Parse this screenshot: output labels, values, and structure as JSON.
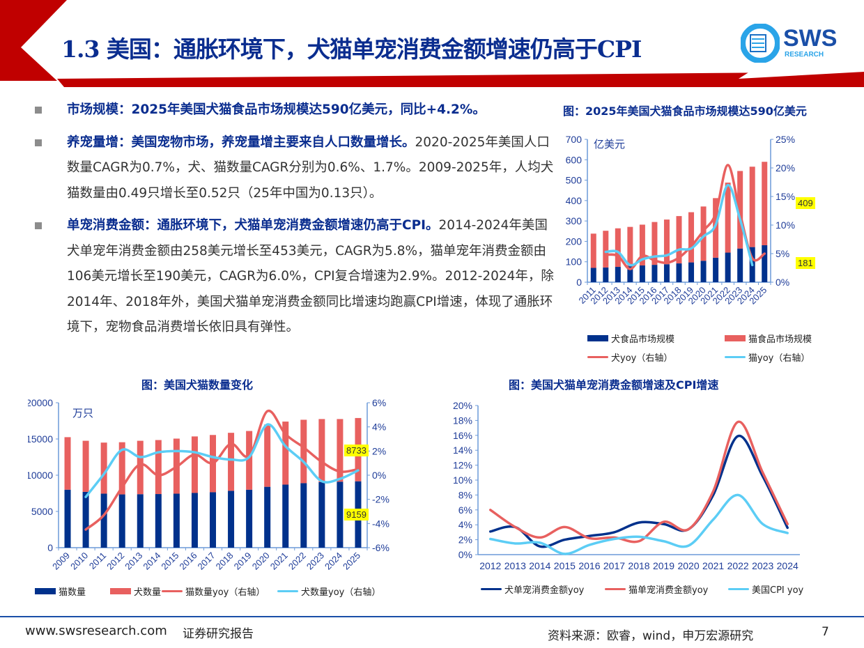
{
  "header": {
    "title": "1.3 美国：通胀环境下，犬猫单宠消费金额增速仍高于CPI",
    "logo_main": "SWS",
    "logo_sub": "RESEARCH"
  },
  "bullets": [
    {
      "highlight": "市场规模：2025年美国犬猫食品市场规模达590亿美元，同比+4.2%。",
      "text": ""
    },
    {
      "highlight": "养宠量增：美国宠物市场，养宠量增主要来自人口数量增长。",
      "text": "2020-2025年美国人口数量CAGR为0.7%，犬、猫数量CAGR分别为0.6%、1.7%。2009-2025年，人均犬猫数量由0.49只增长至0.52只（25年中国为0.13只）。"
    },
    {
      "highlight": "单宠消费金额：通胀环境下，犬猫单宠消费金额增速仍高于CPI。",
      "text": "2014-2024年美国犬单宠年消费金额由258美元增长至453美元，CAGR为5.8%，猫单宠年消费金额由106美元增长至190美元，CAGR为6.0%，CPI复合增速为2.9%。2012-2024年，除2014年、2018年外，美国犬猫单宠消费金额同比增速均跑赢CPI增速，体现了通胀环境下，宠物食品消费增长依旧具有弹性。"
    }
  ],
  "colors": {
    "navy": "#00318c",
    "red": "#e8605f",
    "light_blue": "#5ccdf5",
    "title_blue": "#0a2d8f",
    "brand_red": "#c00000"
  },
  "chart_data": [
    {
      "type": "bar+line",
      "title": "图：2025年美国犬猫食品市场规模达590亿美元",
      "unit": "亿美元",
      "categories": [
        "2011",
        "2012",
        "2013",
        "2014",
        "2015",
        "2016",
        "2017",
        "2018",
        "2019",
        "2020",
        "2021",
        "2022",
        "2023",
        "2024",
        "2025"
      ],
      "ylim": [
        0,
        700
      ],
      "yticks": [
        "0",
        "100",
        "200",
        "300",
        "400",
        "500",
        "600",
        "700"
      ],
      "y2lim": [
        0,
        25
      ],
      "y2ticks": [
        "0%",
        "5%",
        "10%",
        "15%",
        "20%",
        "25%"
      ],
      "series": [
        {
          "name": "犬食品市场规模",
          "kind": "bar",
          "values": [
            70,
            72,
            75,
            78,
            82,
            85,
            88,
            92,
            97,
            105,
            120,
            145,
            165,
            172,
            181
          ]
        },
        {
          "name": "猫食品市场规模",
          "kind": "bar",
          "values": [
            168,
            180,
            189,
            193,
            200,
            210,
            219,
            232,
            246,
            266,
            292,
            343,
            380,
            394,
            409
          ]
        },
        {
          "name": "犬yoy（右轴）",
          "kind": "line",
          "values": [
            null,
            4.8,
            4.6,
            2.3,
            4.6,
            3.8,
            3.4,
            4.3,
            6.3,
            9.0,
            12.0,
            20.5,
            12.0,
            4.2,
            5.0
          ]
        },
        {
          "name": "猫yoy（右轴）",
          "kind": "line",
          "values": [
            null,
            5.3,
            5.3,
            3.0,
            4.0,
            4.5,
            4.7,
            5.7,
            5.9,
            8.0,
            10.0,
            17.0,
            11.0,
            3.0,
            null
          ]
        }
      ],
      "labels": {
        "cat_2025": "409",
        "dog_2025": "181"
      },
      "grid": false,
      "legend": "bottom"
    },
    {
      "type": "bar+line",
      "title": "图：美国犬猫数量变化",
      "unit": "万只",
      "categories": [
        "2009",
        "2010",
        "2011",
        "2012",
        "2013",
        "2014",
        "2015",
        "2016",
        "2017",
        "2018",
        "2019",
        "2020",
        "2021",
        "2022",
        "2023",
        "2024",
        "2025"
      ],
      "ylim": [
        0,
        20000
      ],
      "yticks": [
        "0",
        "5000",
        "10000",
        "15000",
        "20000"
      ],
      "y2lim": [
        -6,
        6
      ],
      "y2ticks": [
        "-6%",
        "-4%",
        "-2%",
        "0%",
        "2%",
        "4%",
        "6%"
      ],
      "series": [
        {
          "name": "猫数量",
          "kind": "bar",
          "values": [
            8000,
            7700,
            7450,
            7350,
            7380,
            7400,
            7450,
            7550,
            7650,
            7850,
            8000,
            8400,
            8700,
            8900,
            9050,
            9100,
            9159
          ]
        },
        {
          "name": "犬数量",
          "kind": "bar",
          "values": [
            7250,
            7050,
            7050,
            7200,
            7370,
            7450,
            7600,
            7800,
            7900,
            8000,
            8100,
            8600,
            8700,
            8750,
            8700,
            8650,
            8733
          ]
        },
        {
          "name": "猫数量yoy（右轴）",
          "kind": "line",
          "values": [
            null,
            -4.5,
            -3.3,
            -1.0,
            0.9,
            0.0,
            0.7,
            1.7,
            1.0,
            2.6,
            1.6,
            5.3,
            3.4,
            2.3,
            1.1,
            0.3,
            0.5
          ]
        },
        {
          "name": "犬数量yoy（右轴）",
          "kind": "line",
          "values": [
            null,
            -1.8,
            0.1,
            2.1,
            1.5,
            1.9,
            2.0,
            1.9,
            1.5,
            1.3,
            1.5,
            4.2,
            2.4,
            1.1,
            -0.5,
            -0.3,
            0.4
          ]
        }
      ],
      "labels": {
        "dog_2025": "8733",
        "cat_2025": "9159"
      },
      "grid": false,
      "legend": "bottom"
    },
    {
      "type": "line",
      "title": "图：美国犬猫单宠消费金额增速及CPI增速",
      "categories": [
        "2012",
        "2013",
        "2014",
        "2015",
        "2016",
        "2017",
        "2018",
        "2019",
        "2020",
        "2021",
        "2022",
        "2023",
        "2024"
      ],
      "ylim": [
        0,
        20
      ],
      "yticks": [
        "0%",
        "2%",
        "4%",
        "6%",
        "8%",
        "10%",
        "12%",
        "14%",
        "16%",
        "18%",
        "20%"
      ],
      "series": [
        {
          "name": "犬单宠消费金额yoy",
          "values": [
            3.1,
            3.7,
            1.1,
            2.0,
            2.5,
            3.0,
            4.3,
            4.1,
            3.4,
            8.0,
            15.9,
            10.5,
            3.6
          ]
        },
        {
          "name": "猫单宠消费金额yoy",
          "values": [
            6.0,
            3.7,
            2.3,
            3.7,
            2.2,
            2.3,
            1.8,
            4.4,
            3.4,
            8.5,
            17.8,
            11.0,
            4.1
          ]
        },
        {
          "name": "美国CPI yoy",
          "values": [
            2.1,
            1.5,
            1.6,
            0.1,
            1.3,
            2.1,
            2.4,
            1.8,
            1.2,
            4.7,
            8.0,
            4.1,
            2.9
          ]
        }
      ],
      "grid": false,
      "legend": "bottom"
    }
  ],
  "footer": {
    "website": "www.swsresearch.com",
    "doc_type": "证券研究报告",
    "source": "资料来源：欧睿，wind，申万宏源研究",
    "page": "7"
  }
}
